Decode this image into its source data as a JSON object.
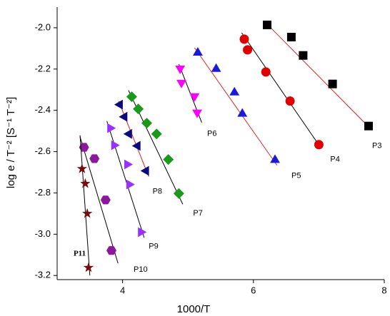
{
  "chart_data": {
    "type": "scatter",
    "xlabel": "1000/T",
    "ylabel": "log e / T⁻² [S⁻¹ T⁻²]",
    "xlim": [
      3,
      8
    ],
    "xticks": [
      4,
      6,
      8
    ],
    "ylim": [
      -3.22,
      -1.9
    ],
    "yticks": [
      {
        "value": -2.0,
        "label": "-2.0"
      },
      -2.2,
      -2.4,
      -2.6,
      -2.8,
      {
        "value": -3.0,
        "label": "-3.0"
      },
      -3.2
    ],
    "series": [
      {
        "name": "P3",
        "color": "#000000",
        "marker": "square",
        "line_color": "#e02020",
        "x": [
          6.21,
          6.58,
          6.76,
          7.21,
          7.76
        ],
        "values": [
          -1.986,
          -2.045,
          -2.134,
          -2.272,
          -2.476
        ],
        "fit": {
          "x": [
            6.19,
            7.78
          ],
          "y": [
            -1.976,
            -2.486
          ]
        }
      },
      {
        "name": "P4",
        "color": "#e00000",
        "marker": "circle",
        "line_color": "#000000",
        "x": [
          5.86,
          5.91,
          6.19,
          6.56,
          7.0
        ],
        "values": [
          -2.055,
          -2.107,
          -2.214,
          -2.355,
          -2.566
        ],
        "fit": {
          "x": [
            5.82,
            7.04
          ],
          "y": [
            -2.024,
            -2.586
          ]
        }
      },
      {
        "name": "P5",
        "color": "#1a1adc",
        "marker": "triangle-up",
        "line_color": "#e02020",
        "x": [
          5.15,
          5.43,
          5.71,
          5.83,
          6.33
        ],
        "values": [
          -2.121,
          -2.2,
          -2.314,
          -2.417,
          -2.641
        ],
        "fit": {
          "x": [
            5.1,
            6.36
          ],
          "y": [
            -2.097,
            -2.666
          ]
        }
      },
      {
        "name": "P6",
        "color": "#ff00ff",
        "marker": "triangle-down",
        "line_color": "#000000",
        "x": [
          4.88,
          4.9,
          5.1,
          5.14
        ],
        "values": [
          -2.197,
          -2.266,
          -2.331,
          -2.41
        ],
        "fit": {
          "x": [
            4.86,
            5.21
          ],
          "y": [
            -2.176,
            -2.459
          ]
        }
      },
      {
        "name": "P7",
        "color": "#1a9a1a",
        "marker": "diamond",
        "line_color": "#000000",
        "x": [
          4.14,
          4.24,
          4.37,
          4.52,
          4.7,
          4.86
        ],
        "values": [
          -2.334,
          -2.393,
          -2.462,
          -2.514,
          -2.638,
          -2.803
        ],
        "fit": {
          "x": [
            4.09,
            4.92
          ],
          "y": [
            -2.303,
            -2.855
          ]
        }
      },
      {
        "name": "P8",
        "color": "#0a0a80",
        "marker": "triangle-left",
        "line_color": "#e02020",
        "x": [
          3.96,
          4.03,
          4.1,
          4.23,
          4.36
        ],
        "values": [
          -2.372,
          -2.431,
          -2.514,
          -2.572,
          -2.693
        ],
        "fit": {
          "x": [
            3.94,
            4.4
          ],
          "y": [
            -2.355,
            -2.721
          ]
        }
      },
      {
        "name": "P9",
        "color": "#9a30ff",
        "marker": "triangle-right",
        "line_color": "#000000",
        "x": [
          3.81,
          3.87,
          4.07,
          4.1,
          4.28
        ],
        "values": [
          -2.486,
          -2.569,
          -2.662,
          -2.759,
          -2.99
        ],
        "fit": {
          "x": [
            3.76,
            4.33
          ],
          "y": [
            -2.452,
            -3.017
          ]
        }
      },
      {
        "name": "P10",
        "color": "#8a1a9a",
        "marker": "hexagon",
        "line_color": "#000000",
        "x": [
          3.41,
          3.57,
          3.74,
          3.83
        ],
        "values": [
          -2.579,
          -2.634,
          -2.834,
          -3.079
        ],
        "fit": {
          "x": [
            3.35,
            3.93
          ],
          "y": [
            -2.528,
            -3.141
          ]
        }
      },
      {
        "name": "P11",
        "color": "#7a0a0a",
        "marker": "star",
        "line_color": "#000000",
        "x": [
          3.38,
          3.43,
          3.46,
          3.48
        ],
        "values": [
          -2.683,
          -2.755,
          -2.9,
          -3.162
        ],
        "fit": {
          "x": [
            3.35,
            3.5
          ],
          "y": [
            -2.521,
            -3.2
          ]
        }
      }
    ]
  }
}
